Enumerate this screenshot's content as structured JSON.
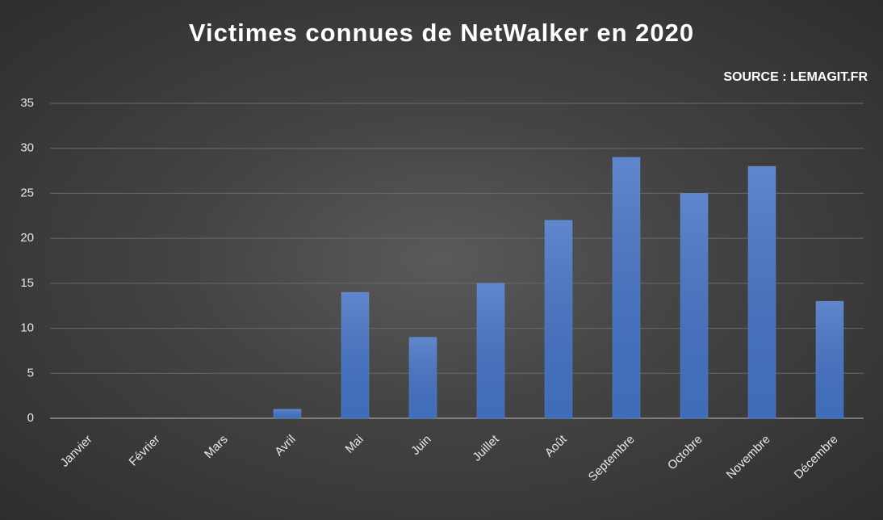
{
  "chart_data": {
    "type": "bar",
    "title": "Victimes connues de NetWalker en 2020",
    "subtitle": "SOURCE : LEMAGIT.FR",
    "categories": [
      "Janvier",
      "Février",
      "Mars",
      "Avril",
      "Mai",
      "Juin",
      "Juillet",
      "Août",
      "Septembre",
      "Octobre",
      "Novembre",
      "Décembre"
    ],
    "values": [
      0,
      0,
      0,
      1,
      14,
      9,
      15,
      22,
      29,
      25,
      28,
      13
    ],
    "color": "#4472c4",
    "ylim": [
      0,
      35
    ],
    "yticks": [
      0,
      5,
      10,
      15,
      20,
      25,
      30,
      35
    ],
    "grid": true
  }
}
